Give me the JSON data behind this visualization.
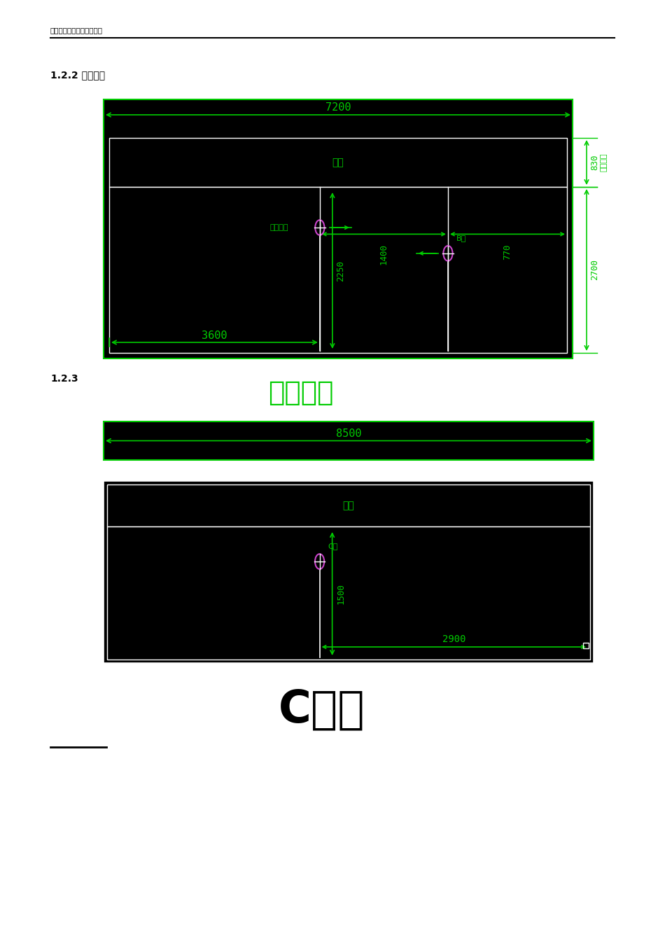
{
  "bg_color": "#ffffff",
  "diagram_bg": "#000000",
  "green": "#00cc00",
  "white": "#ffffff",
  "magenta": "#cc44cc",
  "header_text": "河北医科大学录播实施方案",
  "section1_label": "1.2.2 教室后墙",
  "section2_label": "1.2.3",
  "section2_title": "教室侧墙",
  "bottom_label": "C侧墙",
  "dim_7200": "7200",
  "dim_8500": "8500",
  "dim_3600": "3600",
  "dim_2250": "2250",
  "dim_1400": "1400",
  "dim_770": "770",
  "dim_830": "830",
  "dim_2700": "2700",
  "dim_1500": "1500",
  "dim_2900": "2900",
  "label_dingding": "吊顶",
  "label_teacher_cam": "教师球机",
  "label_B": "B球",
  "label_C": "C球",
  "label_dingding_height": "吊顶高度"
}
